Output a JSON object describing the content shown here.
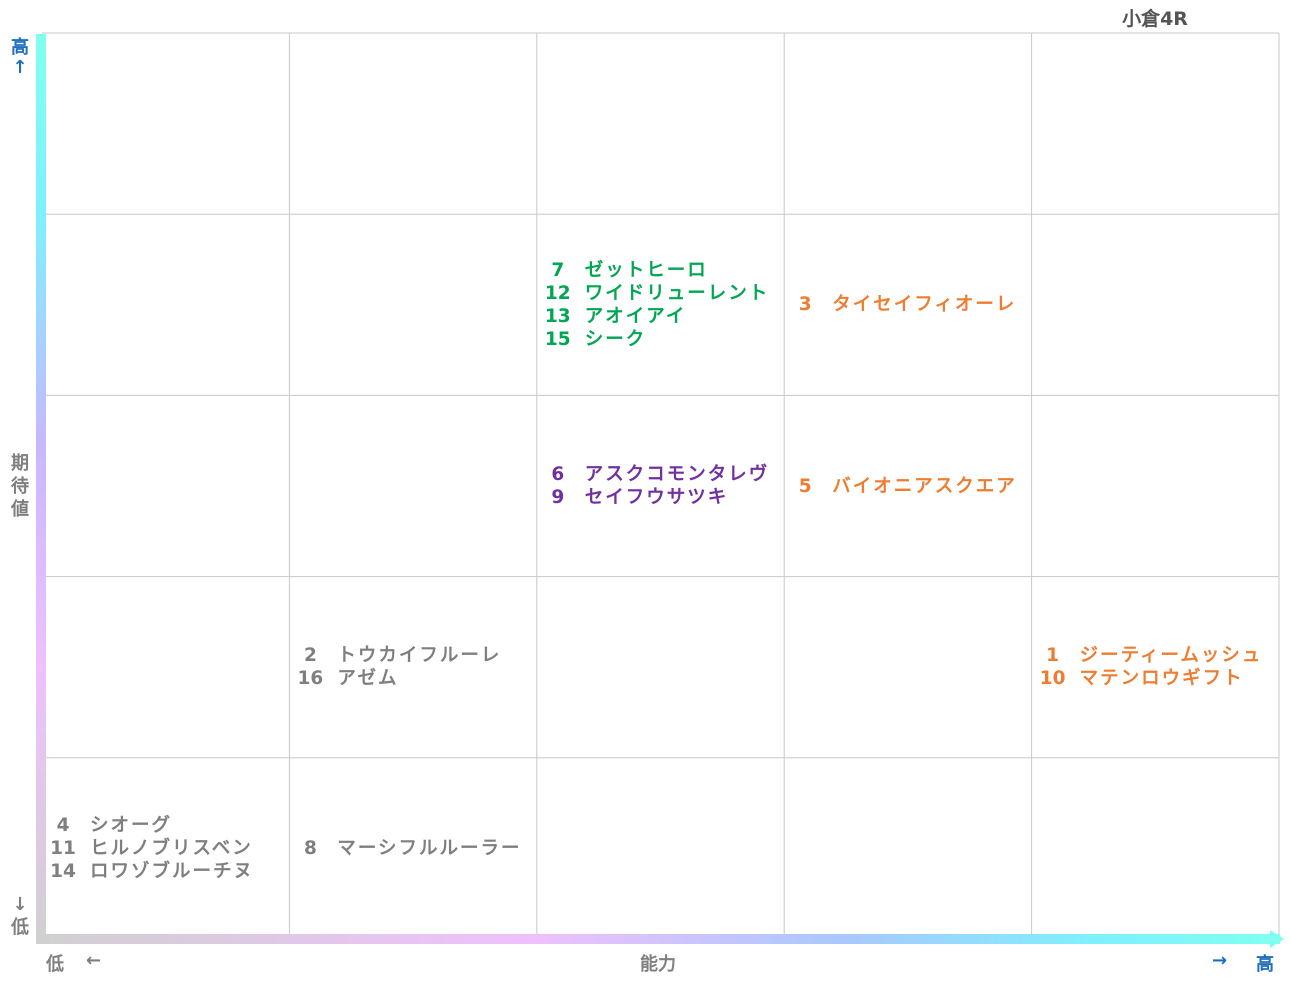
{
  "title": "小倉4R",
  "axes": {
    "y_top": "高",
    "y_top_arrow": "↑",
    "y_label": [
      "期",
      "待",
      "値"
    ],
    "y_bottom_arrow": "↓",
    "y_bottom": "低",
    "x_left": "低",
    "x_left_arrow": "←",
    "x_label": "能力",
    "x_right_arrow": "→",
    "x_right": "高"
  },
  "colors": {
    "green": "#00a651",
    "purple": "#7030a0",
    "orange": "#ed7d31",
    "gray": "#7f7f7f",
    "axis_blue": "#1f6fbf",
    "grid": "#c8c8c8"
  },
  "chart_data": {
    "type": "table",
    "title": "小倉4R",
    "xlabel": "能力",
    "ylabel": "期待値",
    "columns": 5,
    "rows": 5,
    "grid": true,
    "cells": [
      {
        "col": 3,
        "row": 2,
        "color": "green",
        "horses": [
          {
            "no": "7",
            "name": "ゼットヒーロ"
          },
          {
            "no": "12",
            "name": "ワイドリューレント"
          },
          {
            "no": "13",
            "name": "アオイアイ"
          },
          {
            "no": "15",
            "name": "シーク"
          }
        ]
      },
      {
        "col": 4,
        "row": 2,
        "color": "orange",
        "horses": [
          {
            "no": "3",
            "name": "タイセイフィオーレ"
          }
        ]
      },
      {
        "col": 3,
        "row": 3,
        "color": "purple",
        "horses": [
          {
            "no": "6",
            "name": "アスクコモンタレヴ"
          },
          {
            "no": "9",
            "name": "セイフウサツキ"
          }
        ]
      },
      {
        "col": 4,
        "row": 3,
        "color": "orange",
        "horses": [
          {
            "no": "5",
            "name": "バイオニアスクエア"
          }
        ]
      },
      {
        "col": 2,
        "row": 4,
        "color": "gray",
        "horses": [
          {
            "no": "2",
            "name": "トウカイフルーレ"
          },
          {
            "no": "16",
            "name": "アゼム"
          }
        ]
      },
      {
        "col": 5,
        "row": 4,
        "color": "orange",
        "horses": [
          {
            "no": "1",
            "name": "ジーティームッシュ"
          },
          {
            "no": "10",
            "name": "マテンロウギフト"
          }
        ]
      },
      {
        "col": 1,
        "row": 5,
        "color": "gray",
        "horses": [
          {
            "no": "4",
            "name": "シオーグ"
          },
          {
            "no": "11",
            "name": "ヒルノブリスベン"
          },
          {
            "no": "14",
            "name": "ロワゾブルーチヌ"
          }
        ]
      },
      {
        "col": 2,
        "row": 5,
        "color": "gray",
        "horses": [
          {
            "no": "8",
            "name": "マーシフルルーラー"
          }
        ]
      }
    ]
  }
}
